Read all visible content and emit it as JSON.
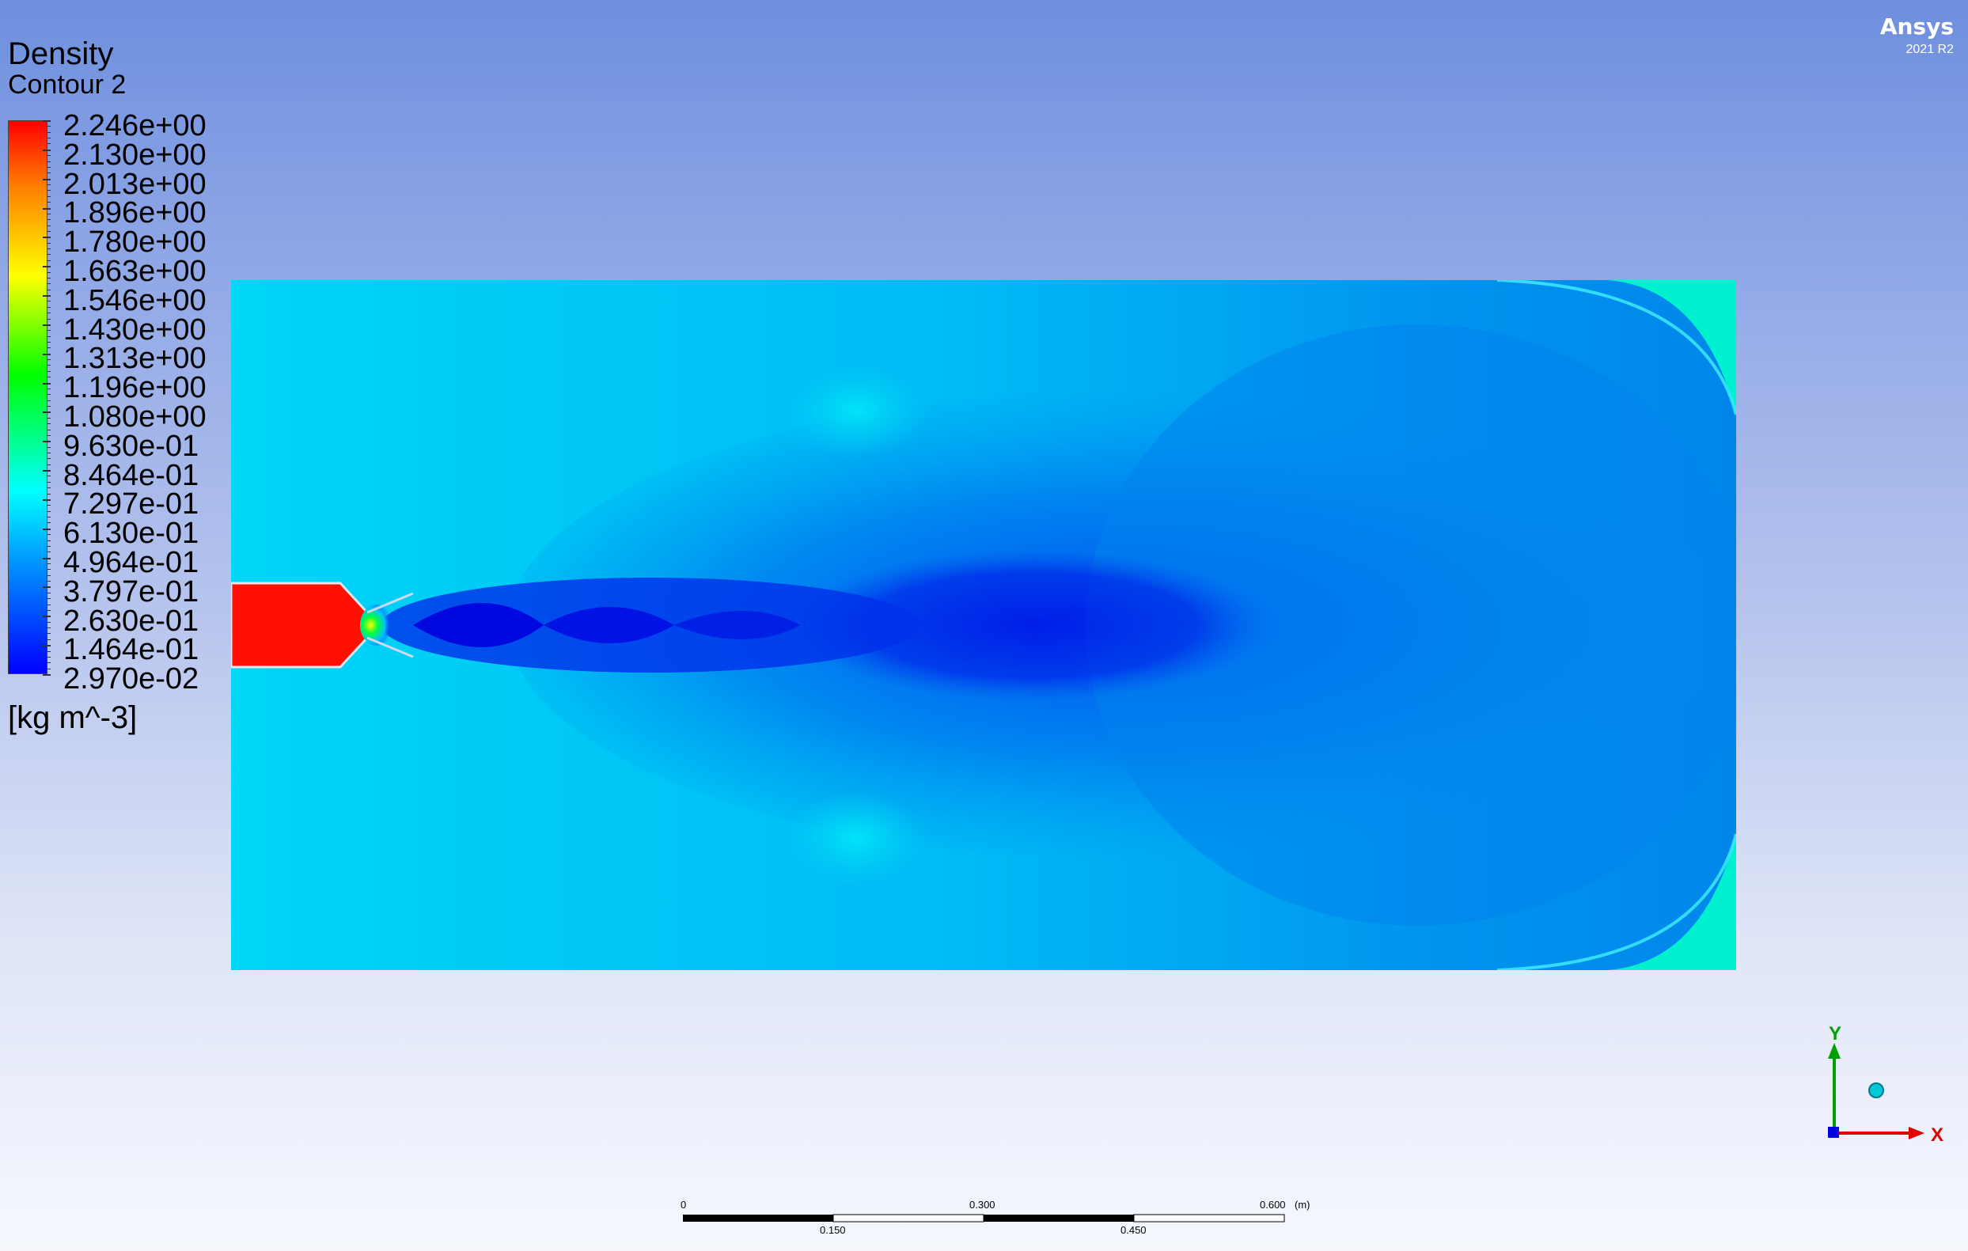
{
  "brand": {
    "name": "Ansys",
    "version": "2021 R2"
  },
  "legend": {
    "title": "Density",
    "subtitle": "Contour 2",
    "unit": "[kg m^-3]",
    "labels": [
      "2.246e+00",
      "2.130e+00",
      "2.013e+00",
      "1.896e+00",
      "1.780e+00",
      "1.663e+00",
      "1.546e+00",
      "1.430e+00",
      "1.313e+00",
      "1.196e+00",
      "1.080e+00",
      "9.630e-01",
      "8.464e-01",
      "7.297e-01",
      "6.130e-01",
      "4.964e-01",
      "3.797e-01",
      "2.630e-01",
      "1.464e-01",
      "2.970e-02"
    ],
    "colors": [
      "#0000ff",
      "#0094ff",
      "#00ffff",
      "#00ff00",
      "#ffff00",
      "#ff8000",
      "#ff0000"
    ]
  },
  "axes": {
    "y_label": "Y",
    "x_label": "X"
  },
  "scale": {
    "top_labels": [
      "0",
      "0.300",
      "0.600"
    ],
    "unit": "(m)",
    "bottom_labels": [
      "0.150",
      "0.450"
    ]
  }
}
